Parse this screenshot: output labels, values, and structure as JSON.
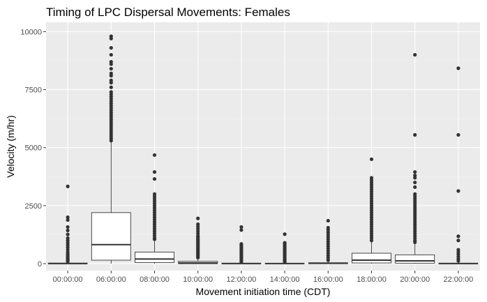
{
  "chart_data": {
    "type": "box",
    "title": "Timing of LPC Dispersal Movements: Females",
    "xlabel": "Movement initiation time (CDT)",
    "ylabel": "Velocity (m/hr)",
    "ylim": [
      -300,
      10400
    ],
    "yticks": [
      0,
      2500,
      5000,
      7500,
      10000
    ],
    "grid": true,
    "colors": {
      "panel": "#ebebeb",
      "grid_major": "#ffffff",
      "grid_minor": "#f2f2f2",
      "box_fill": "#ffffff",
      "box_line": "#333333",
      "outlier": "#333333"
    },
    "categories": [
      "00:00:00",
      "06:00:00",
      "08:00:00",
      "10:00:00",
      "12:00:00",
      "14:00:00",
      "16:00:00",
      "18:00:00",
      "20:00:00",
      "22:00:00"
    ],
    "boxes": [
      {
        "q1": 0,
        "median": 5,
        "q3": 25,
        "whisker_low": 0,
        "whisker_high": 60,
        "outliers": [
          3330,
          2000,
          1880,
          1580,
          1430,
          1260,
          1100,
          1000,
          900,
          800,
          700,
          600,
          500,
          420,
          360,
          300,
          250,
          200,
          160,
          120,
          90
        ]
      },
      {
        "q1": 150,
        "median": 820,
        "q3": 2200,
        "whisker_low": 0,
        "whisker_high": 5250,
        "outliers": [
          9800,
          9700,
          9300,
          9000,
          8700,
          8600,
          8400,
          8200,
          8100,
          7900,
          7800,
          7600,
          7400,
          7300,
          7200,
          7100,
          7000,
          6900,
          6800,
          6700,
          6600,
          6500,
          6400,
          6300,
          6200,
          6100,
          6000,
          5900,
          5800,
          5700,
          5600,
          5500,
          5400,
          5300
        ]
      },
      {
        "q1": 50,
        "median": 200,
        "q3": 500,
        "whisker_low": 0,
        "whisker_high": 1000,
        "outliers": [
          4680,
          3950,
          3650,
          3000,
          2900,
          2800,
          2700,
          2600,
          2500,
          2400,
          2300,
          2200,
          2100,
          2000,
          1900,
          1800,
          1700,
          1600,
          1500,
          1400,
          1300,
          1200,
          1100,
          1050
        ]
      },
      {
        "q1": 0,
        "median": 30,
        "q3": 100,
        "whisker_low": 0,
        "whisker_high": 240,
        "outliers": [
          1950,
          1700,
          1600,
          1500,
          1400,
          1300,
          1200,
          1150,
          1100,
          1050,
          1000,
          950,
          900,
          850,
          800,
          750,
          700,
          650,
          600,
          550,
          500,
          450,
          400,
          350,
          300,
          260
        ]
      },
      {
        "q1": 0,
        "median": 5,
        "q3": 20,
        "whisker_low": 0,
        "whisker_high": 50,
        "outliers": [
          1580,
          1450,
          850,
          800,
          750,
          700,
          650,
          600,
          550,
          500,
          450,
          400,
          350,
          300,
          250,
          200,
          150,
          100,
          70
        ]
      },
      {
        "q1": 0,
        "median": 5,
        "q3": 15,
        "whisker_low": 0,
        "whisker_high": 40,
        "outliers": [
          1270,
          900,
          850,
          800,
          750,
          700,
          650,
          600,
          550,
          500,
          450,
          400,
          350,
          300,
          250,
          200,
          150,
          100,
          60
        ]
      },
      {
        "q1": 0,
        "median": 15,
        "q3": 40,
        "whisker_low": 0,
        "whisker_high": 100,
        "outliers": [
          1850,
          1550,
          1450,
          1350,
          1250,
          1150,
          1050,
          950,
          850,
          750,
          650,
          550,
          450,
          350,
          250,
          150
        ]
      },
      {
        "q1": 30,
        "median": 150,
        "q3": 450,
        "whisker_low": 0,
        "whisker_high": 950,
        "outliers": [
          4500,
          3700,
          3600,
          3500,
          3400,
          3300,
          3200,
          3100,
          3000,
          2900,
          2800,
          2700,
          2600,
          2500,
          2400,
          2300,
          2200,
          2100,
          2000,
          1900,
          1800,
          1700,
          1600,
          1500,
          1400,
          1300,
          1200,
          1100,
          1000
        ]
      },
      {
        "q1": 20,
        "median": 120,
        "q3": 380,
        "whisker_low": 0,
        "whisker_high": 870,
        "outliers": [
          9000,
          5550,
          3950,
          3800,
          3700,
          3500,
          3300,
          3000,
          2900,
          2800,
          2700,
          2600,
          2500,
          2400,
          2300,
          2200,
          2100,
          2000,
          1900,
          1800,
          1700,
          1600,
          1500,
          1400,
          1300,
          1200,
          1100,
          1000,
          920
        ]
      },
      {
        "q1": 0,
        "median": 5,
        "q3": 20,
        "whisker_low": 0,
        "whisker_high": 50,
        "outliers": [
          8420,
          5550,
          3130,
          1180,
          1000,
          600,
          500,
          400,
          300,
          200,
          120
        ]
      }
    ]
  }
}
